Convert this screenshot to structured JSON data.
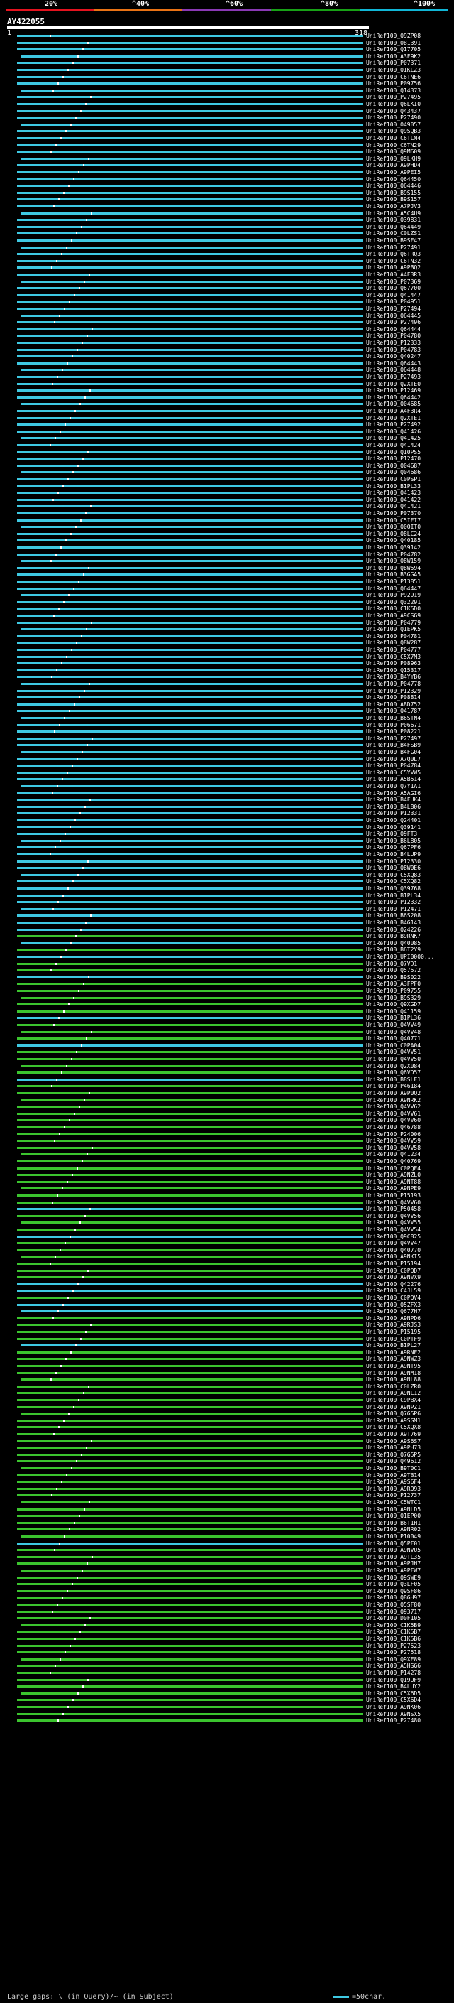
{
  "scale": {
    "labels": [
      "20%",
      "^40%",
      "^60%",
      "^80%",
      "^100%"
    ],
    "colors": [
      "#e5131f",
      "#e97315",
      "#8a39b4",
      "#18a216",
      "#11b6d6"
    ]
  },
  "query": {
    "id": "AY422055",
    "start": "1",
    "end": "318"
  },
  "colors": {
    "high": "#3ec9e2",
    "mid": "#3bc42e",
    "gap": "#2a58e8",
    "dot": "#ffffff"
  },
  "hits": [
    {
      "name": "UniRef100_Q9ZP08",
      "c": "c"
    },
    {
      "name": "UniRef100_O81391",
      "c": "c"
    },
    {
      "name": "UniRef100_Q17705",
      "c": "c"
    },
    {
      "name": "UniRef100_A3F9K2",
      "c": "c"
    },
    {
      "name": "UniRef100_P07371",
      "c": "c"
    },
    {
      "name": "UniRef100_Q1KLZ3",
      "c": "c"
    },
    {
      "name": "UniRef100_C6TNE6",
      "c": "c"
    },
    {
      "name": "UniRef100_P09756",
      "c": "c"
    },
    {
      "name": "UniRef100_Q14373",
      "c": "c"
    },
    {
      "name": "UniRef100_P27495",
      "c": "c"
    },
    {
      "name": "UniRef100_Q6LKI0",
      "c": "c"
    },
    {
      "name": "UniRef100_Q43437",
      "c": "c"
    },
    {
      "name": "UniRef100_P27490",
      "c": "c"
    },
    {
      "name": "UniRef100_O49057",
      "c": "c"
    },
    {
      "name": "UniRef100_Q9SQB3",
      "c": "c"
    },
    {
      "name": "UniRef100_C6TLM4",
      "c": "c"
    },
    {
      "name": "UniRef100_C6TN29",
      "c": "c"
    },
    {
      "name": "UniRef100_Q9M609",
      "c": "c"
    },
    {
      "name": "UniRef100_Q9LKH9",
      "c": "c"
    },
    {
      "name": "UniRef100_A9PHD4",
      "c": "c"
    },
    {
      "name": "UniRef100_A9PEI5",
      "c": "c"
    },
    {
      "name": "UniRef100_Q64450",
      "c": "c"
    },
    {
      "name": "UniRef100_Q64446",
      "c": "c"
    },
    {
      "name": "UniRef100_B9S155",
      "c": "c"
    },
    {
      "name": "UniRef100_B9S157",
      "c": "c"
    },
    {
      "name": "UniRef100_A7PJV3",
      "c": "c"
    },
    {
      "name": "UniRef100_A5C4U9",
      "c": "c"
    },
    {
      "name": "UniRef100_Q39831",
      "c": "c"
    },
    {
      "name": "UniRef100_Q64449",
      "c": "c"
    },
    {
      "name": "UniRef100_C0LZS1",
      "c": "c"
    },
    {
      "name": "UniRef100_B9SF47",
      "c": "c"
    },
    {
      "name": "UniRef100_P27491",
      "c": "c"
    },
    {
      "name": "UniRef100_Q6TRQ3",
      "c": "c"
    },
    {
      "name": "UniRef100_C6TN32",
      "c": "c"
    },
    {
      "name": "UniRef100_A9PBQ2",
      "c": "c"
    },
    {
      "name": "UniRef100_A4F3R3",
      "c": "c"
    },
    {
      "name": "UniRef100_P07369",
      "c": "c"
    },
    {
      "name": "UniRef100_Q67700",
      "c": "c"
    },
    {
      "name": "UniRef100_Q41447",
      "c": "c"
    },
    {
      "name": "UniRef100_P04951",
      "c": "c"
    },
    {
      "name": "UniRef100_P27494",
      "c": "c"
    },
    {
      "name": "UniRef100_Q64445",
      "c": "c"
    },
    {
      "name": "UniRef100_P27496",
      "c": "c"
    },
    {
      "name": "UniRef100_Q64444",
      "c": "c"
    },
    {
      "name": "UniRef100_P04780",
      "c": "c"
    },
    {
      "name": "UniRef100_P12333",
      "c": "c"
    },
    {
      "name": "UniRef100_P04783",
      "c": "c"
    },
    {
      "name": "UniRef100_Q40247",
      "c": "c"
    },
    {
      "name": "UniRef100_Q64443",
      "c": "c"
    },
    {
      "name": "UniRef100_Q64448",
      "c": "c"
    },
    {
      "name": "UniRef100_P27493",
      "c": "c"
    },
    {
      "name": "UniRef100_Q2XTE0",
      "c": "c"
    },
    {
      "name": "UniRef100_P12469",
      "c": "c"
    },
    {
      "name": "UniRef100_Q64442",
      "c": "c"
    },
    {
      "name": "UniRef100_Q04685",
      "c": "c"
    },
    {
      "name": "UniRef100_A4F3R4",
      "c": "c"
    },
    {
      "name": "UniRef100_Q2XTE1",
      "c": "c"
    },
    {
      "name": "UniRef100_P27492",
      "c": "c"
    },
    {
      "name": "UniRef100_Q41426",
      "c": "c"
    },
    {
      "name": "UniRef100_Q41425",
      "c": "c"
    },
    {
      "name": "UniRef100_Q41424",
      "c": "c"
    },
    {
      "name": "UniRef100_Q10PS5",
      "c": "c"
    },
    {
      "name": "UniRef100_P12470",
      "c": "c"
    },
    {
      "name": "UniRef100_Q04687",
      "c": "c"
    },
    {
      "name": "UniRef100_Q04686",
      "c": "c"
    },
    {
      "name": "UniRef100_C0PSP1",
      "c": "c"
    },
    {
      "name": "UniRef100_B1PL33",
      "c": "c"
    },
    {
      "name": "UniRef100_Q41423",
      "c": "c"
    },
    {
      "name": "UniRef100_Q41422",
      "c": "c"
    },
    {
      "name": "UniRef100_Q41421",
      "c": "c"
    },
    {
      "name": "UniRef100_P07370",
      "c": "c"
    },
    {
      "name": "UniRef100_C5IFI7",
      "c": "c"
    },
    {
      "name": "UniRef100_Q0QIT0",
      "c": "c"
    },
    {
      "name": "UniRef100_Q8LC24",
      "c": "c"
    },
    {
      "name": "UniRef100_Q40185",
      "c": "c"
    },
    {
      "name": "UniRef100_Q39142",
      "c": "c"
    },
    {
      "name": "UniRef100_P04782",
      "c": "c"
    },
    {
      "name": "UniRef100_Q8W159",
      "c": "c"
    },
    {
      "name": "UniRef100_Q8W594",
      "c": "c"
    },
    {
      "name": "UniRef100_B3GGA5",
      "c": "c"
    },
    {
      "name": "UniRef100_P13851",
      "c": "c"
    },
    {
      "name": "UniRef100_Q64447",
      "c": "c"
    },
    {
      "name": "UniRef100_P92919",
      "c": "c"
    },
    {
      "name": "UniRef100_Q32291",
      "c": "c"
    },
    {
      "name": "UniRef100_C1K5D0",
      "c": "c"
    },
    {
      "name": "UniRef100_A9CSG9",
      "c": "c"
    },
    {
      "name": "UniRef100_P04779",
      "c": "c"
    },
    {
      "name": "UniRef100_Q1EPK5",
      "c": "c"
    },
    {
      "name": "UniRef100_P04781",
      "c": "c"
    },
    {
      "name": "UniRef100_Q8W287",
      "c": "c"
    },
    {
      "name": "UniRef100_P04777",
      "c": "c"
    },
    {
      "name": "UniRef100_C5X7M3",
      "c": "c"
    },
    {
      "name": "UniRef100_P08963",
      "c": "c"
    },
    {
      "name": "UniRef100_Q15317",
      "c": "c"
    },
    {
      "name": "UniRef100_B4YYB6",
      "c": "c"
    },
    {
      "name": "UniRef100_P04778",
      "c": "c"
    },
    {
      "name": "UniRef100_P12329",
      "c": "c"
    },
    {
      "name": "UniRef100_P08814",
      "c": "c"
    },
    {
      "name": "UniRef100_A8D752",
      "c": "c"
    },
    {
      "name": "UniRef100_Q41787",
      "c": "c"
    },
    {
      "name": "UniRef100_B6STN4",
      "c": "c"
    },
    {
      "name": "UniRef100_P06671",
      "c": "c"
    },
    {
      "name": "UniRef100_P08221",
      "c": "c"
    },
    {
      "name": "UniRef100_P27497",
      "c": "c"
    },
    {
      "name": "UniRef100_B4FSB9",
      "c": "c"
    },
    {
      "name": "UniRef100_B4FG04",
      "c": "c"
    },
    {
      "name": "UniRef100_A7Q0L7",
      "c": "c"
    },
    {
      "name": "UniRef100_P04784",
      "c": "c"
    },
    {
      "name": "UniRef100_C5YVW5",
      "c": "c"
    },
    {
      "name": "UniRef100_A5B514",
      "c": "c"
    },
    {
      "name": "UniRef100_Q7Y1A1",
      "c": "c"
    },
    {
      "name": "UniRef100_A5AGI6",
      "c": "c"
    },
    {
      "name": "UniRef100_B4FUK4",
      "c": "c"
    },
    {
      "name": "UniRef100_B4L806",
      "c": "c"
    },
    {
      "name": "UniRef100_P12331",
      "c": "c"
    },
    {
      "name": "UniRef100_Q24401",
      "c": "c"
    },
    {
      "name": "UniRef100_Q39141",
      "c": "c"
    },
    {
      "name": "UniRef100_Q9FT3",
      "c": "c"
    },
    {
      "name": "UniRef100_B6L805",
      "c": "c"
    },
    {
      "name": "UniRef100_Q67PF6",
      "c": "c"
    },
    {
      "name": "UniRef100_B4LUP9",
      "c": "c"
    },
    {
      "name": "UniRef100_P12330",
      "c": "c"
    },
    {
      "name": "UniRef100_Q8W0E6",
      "c": "c"
    },
    {
      "name": "UniRef100_C5XQ83",
      "c": "c"
    },
    {
      "name": "UniRef100_C5XQ82",
      "c": "c"
    },
    {
      "name": "UniRef100_Q39768",
      "c": "c"
    },
    {
      "name": "UniRef100_B1PL34",
      "c": "c"
    },
    {
      "name": "UniRef100_P12332",
      "c": "c"
    },
    {
      "name": "UniRef100_P12471",
      "c": "c"
    },
    {
      "name": "UniRef100_B6S208",
      "c": "c"
    },
    {
      "name": "UniRef100_B4G143",
      "c": "c"
    },
    {
      "name": "UniRef100_Q24226",
      "c": "c"
    },
    {
      "name": "UniRef100_B9RNK7",
      "c": "g"
    },
    {
      "name": "UniRef100_Q40085",
      "c": "c"
    },
    {
      "name": "UniRef100_B6T2Y9",
      "c": "g"
    },
    {
      "name": "UniRef100_UPI0000...",
      "c": "c"
    },
    {
      "name": "UniRef100_Q7VD1",
      "c": "g"
    },
    {
      "name": "UniRef100_Q57572",
      "c": "g"
    },
    {
      "name": "UniRef100_B9S022",
      "c": "c"
    },
    {
      "name": "UniRef100_A3FPF0",
      "c": "g"
    },
    {
      "name": "UniRef100_P09755",
      "c": "g"
    },
    {
      "name": "UniRef100_B9S329",
      "c": "g"
    },
    {
      "name": "UniRef100_Q9XGD7",
      "c": "g"
    },
    {
      "name": "UniRef100_Q41159",
      "c": "g"
    },
    {
      "name": "UniRef100_B1PL36",
      "c": "c"
    },
    {
      "name": "UniRef100_Q4VV49",
      "c": "g"
    },
    {
      "name": "UniRef100_Q4VV48",
      "c": "g"
    },
    {
      "name": "UniRef100_Q40771",
      "c": "g"
    },
    {
      "name": "UniRef100_C0PA04",
      "c": "c"
    },
    {
      "name": "UniRef100_Q4VV51",
      "c": "g"
    },
    {
      "name": "UniRef100_Q4VV50",
      "c": "g"
    },
    {
      "name": "UniRef100_Q2X084",
      "c": "g"
    },
    {
      "name": "UniRef100_Q6VD57",
      "c": "g"
    },
    {
      "name": "UniRef100_B8SLF1",
      "c": "c"
    },
    {
      "name": "UniRef100_P46184",
      "c": "g"
    },
    {
      "name": "UniRef100_A9P0Q2",
      "c": "g"
    },
    {
      "name": "UniRef100_A9NRK2",
      "c": "g"
    },
    {
      "name": "UniRef100_Q4VV62",
      "c": "g"
    },
    {
      "name": "UniRef100_Q4VV61",
      "c": "g"
    },
    {
      "name": "UniRef100_Q4VV60",
      "c": "g"
    },
    {
      "name": "UniRef100_Q46788",
      "c": "g"
    },
    {
      "name": "UniRef100_P24006",
      "c": "g"
    },
    {
      "name": "UniRef100_Q4VV59",
      "c": "g"
    },
    {
      "name": "UniRef100_Q4VV58",
      "c": "g"
    },
    {
      "name": "UniRef100_Q41234",
      "c": "g"
    },
    {
      "name": "UniRef100_Q40769",
      "c": "g"
    },
    {
      "name": "UniRef100_C0PQF4",
      "c": "g"
    },
    {
      "name": "UniRef100_A9NZL0",
      "c": "g"
    },
    {
      "name": "UniRef100_A9NT88",
      "c": "g"
    },
    {
      "name": "UniRef100_A9NPE9",
      "c": "g"
    },
    {
      "name": "UniRef100_P15193",
      "c": "g"
    },
    {
      "name": "UniRef100_Q4VV60",
      "c": "g"
    },
    {
      "name": "UniRef100_P50458",
      "c": "c"
    },
    {
      "name": "UniRef100_Q4VV56",
      "c": "g"
    },
    {
      "name": "UniRef100_Q4VV55",
      "c": "g"
    },
    {
      "name": "UniRef100_Q4VV54",
      "c": "g"
    },
    {
      "name": "UniRef100_Q9C825",
      "c": "c"
    },
    {
      "name": "UniRef100_Q4VV47",
      "c": "g"
    },
    {
      "name": "UniRef100_Q40770",
      "c": "g"
    },
    {
      "name": "UniRef100_A9NKI5",
      "c": "g"
    },
    {
      "name": "UniRef100_P15194",
      "c": "g"
    },
    {
      "name": "UniRef100_C0PQD7",
      "c": "g"
    },
    {
      "name": "UniRef100_A9NVX9",
      "c": "g"
    },
    {
      "name": "UniRef100_Q42276",
      "c": "c"
    },
    {
      "name": "UniRef100_C4JL59",
      "c": "c"
    },
    {
      "name": "UniRef100_C0PQV4",
      "c": "g"
    },
    {
      "name": "UniRef100_Q5ZFX3",
      "c": "c"
    },
    {
      "name": "UniRef100_Q677H7",
      "c": "c"
    },
    {
      "name": "UniRef100_A9NPD6",
      "c": "g"
    },
    {
      "name": "UniRef100_A9RJS3",
      "c": "g"
    },
    {
      "name": "UniRef100_P15195",
      "c": "g"
    },
    {
      "name": "UniRef100_C0PTF9",
      "c": "g"
    },
    {
      "name": "UniRef100_B1PL27",
      "c": "c"
    },
    {
      "name": "UniRef100_A9RNF2",
      "c": "g"
    },
    {
      "name": "UniRef100_A9NWZ3",
      "c": "g"
    },
    {
      "name": "UniRef100_A9NT95",
      "c": "g"
    },
    {
      "name": "UniRef100_A9NM18",
      "c": "g"
    },
    {
      "name": "UniRef100_A9NL88",
      "c": "g"
    },
    {
      "name": "UniRef100_C0LZR0",
      "c": "g"
    },
    {
      "name": "UniRef100_A9NL12",
      "c": "g"
    },
    {
      "name": "UniRef100_C9PBX4",
      "c": "g"
    },
    {
      "name": "UniRef100_A9NPZ1",
      "c": "g"
    },
    {
      "name": "UniRef100_Q7G5P6",
      "c": "g"
    },
    {
      "name": "UniRef100_A9SGM1",
      "c": "g"
    },
    {
      "name": "UniRef100_C5XQX8",
      "c": "g"
    },
    {
      "name": "UniRef100_A9T769",
      "c": "g"
    },
    {
      "name": "UniRef100_A9S6S7",
      "c": "g"
    },
    {
      "name": "UniRef100_A9PH73",
      "c": "g"
    },
    {
      "name": "UniRef100_Q7G5P5",
      "c": "g"
    },
    {
      "name": "UniRef100_Q49612",
      "c": "g"
    },
    {
      "name": "UniRef100_B9T0C1",
      "c": "g"
    },
    {
      "name": "UniRef100_A9TB14",
      "c": "g"
    },
    {
      "name": "UniRef100_A9S6F4",
      "c": "g"
    },
    {
      "name": "UniRef100_A9RQ93",
      "c": "g"
    },
    {
      "name": "UniRef100_P12737",
      "c": "g"
    },
    {
      "name": "UniRef100_C5WTC1",
      "c": "g"
    },
    {
      "name": "UniRef100_A9NLD5",
      "c": "g"
    },
    {
      "name": "UniRef100_Q1EP00",
      "c": "g"
    },
    {
      "name": "UniRef100_B6T1H1",
      "c": "g"
    },
    {
      "name": "UniRef100_A9NR02",
      "c": "g"
    },
    {
      "name": "UniRef100_P10049",
      "c": "g"
    },
    {
      "name": "UniRef100_Q5PF01",
      "c": "c"
    },
    {
      "name": "UniRef100_A9NVU5",
      "c": "g"
    },
    {
      "name": "UniRef100_A9TL35",
      "c": "g"
    },
    {
      "name": "UniRef100_A9PJH7",
      "c": "g"
    },
    {
      "name": "UniRef100_A9PFW7",
      "c": "g"
    },
    {
      "name": "UniRef100_Q9SWE9",
      "c": "g"
    },
    {
      "name": "UniRef100_Q3LF05",
      "c": "g"
    },
    {
      "name": "UniRef100_Q9SF86",
      "c": "g"
    },
    {
      "name": "UniRef100_Q8GH97",
      "c": "g"
    },
    {
      "name": "UniRef100_Q5SF80",
      "c": "g"
    },
    {
      "name": "UniRef100_Q93717",
      "c": "g"
    },
    {
      "name": "UniRef100_D0F105",
      "c": "g"
    },
    {
      "name": "UniRef100_C1K5B9",
      "c": "g"
    },
    {
      "name": "UniRef100_C1K5B7",
      "c": "g"
    },
    {
      "name": "UniRef100_C1K5B6",
      "c": "g"
    },
    {
      "name": "UniRef100_P27523",
      "c": "g"
    },
    {
      "name": "UniRef100_P27518",
      "c": "g"
    },
    {
      "name": "UniRef100_Q9XF89",
      "c": "g"
    },
    {
      "name": "UniRef100_A5HSG6",
      "c": "g"
    },
    {
      "name": "UniRef100_P14278",
      "c": "g"
    },
    {
      "name": "UniRef100_Q19UF9",
      "c": "g"
    },
    {
      "name": "UniRef100_B4LUY2",
      "c": "g"
    },
    {
      "name": "UniRef100_C5X6D5",
      "c": "g"
    },
    {
      "name": "UniRef100_C5X6D4",
      "c": "g"
    },
    {
      "name": "UniRef100_A9NK06",
      "c": "g"
    },
    {
      "name": "UniRef100_A9NSX5",
      "c": "g"
    },
    {
      "name": "UniRef100_P27480",
      "c": "g"
    }
  ],
  "legend": {
    "left": "Large gaps: \\ (in Query)/~ (in Subject)",
    "right": "=50char."
  }
}
